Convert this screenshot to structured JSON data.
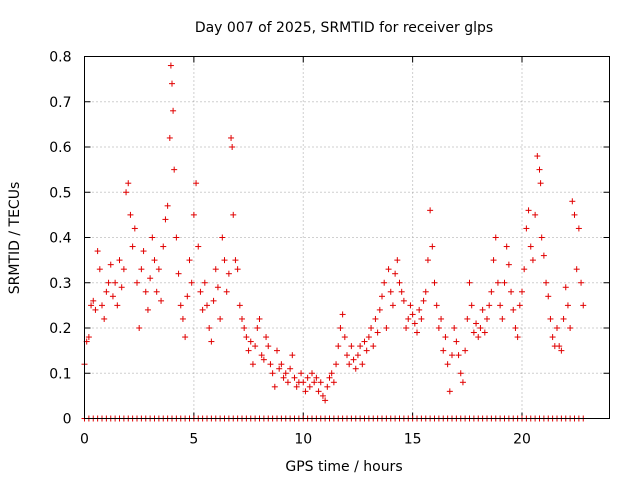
{
  "chart_data": {
    "type": "scatter",
    "title": "Day 007 of 2025, SRMTID for receiver glps",
    "xlabel": "GPS time / hours",
    "ylabel": "SRMTID / TECUs",
    "xlim": [
      0,
      24
    ],
    "ylim": [
      0,
      0.8
    ],
    "xticks": [
      0,
      5,
      10,
      15,
      20
    ],
    "xtick_labels": [
      "0",
      "5",
      "10",
      "15",
      "20"
    ],
    "yticks": [
      0,
      0.1,
      0.2,
      0.3,
      0.4,
      0.5,
      0.6,
      0.7,
      0.8
    ],
    "ytick_labels": [
      "0",
      "0.1",
      "0.2",
      "0.3",
      "0.4",
      "0.5",
      "0.6",
      "0.7",
      "0.8"
    ],
    "grid": true,
    "marker": "+",
    "color": "#e00000",
    "zero_line_range_hours": [
      0,
      22.8
    ],
    "series": [
      {
        "name": "SRMTID",
        "points": [
          [
            0.0,
            0.12
          ],
          [
            0.1,
            0.17
          ],
          [
            0.2,
            0.18
          ],
          [
            0.3,
            0.25
          ],
          [
            0.4,
            0.26
          ],
          [
            0.5,
            0.24
          ],
          [
            0.6,
            0.37
          ],
          [
            0.7,
            0.33
          ],
          [
            0.8,
            0.25
          ],
          [
            0.9,
            0.22
          ],
          [
            1.0,
            0.28
          ],
          [
            1.1,
            0.3
          ],
          [
            1.2,
            0.34
          ],
          [
            1.3,
            0.27
          ],
          [
            1.4,
            0.3
          ],
          [
            1.5,
            0.25
          ],
          [
            1.6,
            0.35
          ],
          [
            1.7,
            0.29
          ],
          [
            1.8,
            0.33
          ],
          [
            1.9,
            0.5
          ],
          [
            2.0,
            0.52
          ],
          [
            2.1,
            0.45
          ],
          [
            2.2,
            0.38
          ],
          [
            2.3,
            0.42
          ],
          [
            2.4,
            0.3
          ],
          [
            2.5,
            0.2
          ],
          [
            2.6,
            0.33
          ],
          [
            2.7,
            0.37
          ],
          [
            2.8,
            0.28
          ],
          [
            2.9,
            0.24
          ],
          [
            3.0,
            0.31
          ],
          [
            3.1,
            0.4
          ],
          [
            3.2,
            0.35
          ],
          [
            3.3,
            0.28
          ],
          [
            3.4,
            0.33
          ],
          [
            3.5,
            0.26
          ],
          [
            3.6,
            0.38
          ],
          [
            3.7,
            0.44
          ],
          [
            3.8,
            0.47
          ],
          [
            3.9,
            0.62
          ],
          [
            3.95,
            0.78
          ],
          [
            4.0,
            0.74
          ],
          [
            4.05,
            0.68
          ],
          [
            4.1,
            0.55
          ],
          [
            4.2,
            0.4
          ],
          [
            4.3,
            0.32
          ],
          [
            4.4,
            0.25
          ],
          [
            4.5,
            0.22
          ],
          [
            4.6,
            0.18
          ],
          [
            4.7,
            0.27
          ],
          [
            4.8,
            0.35
          ],
          [
            4.9,
            0.3
          ],
          [
            5.0,
            0.45
          ],
          [
            5.1,
            0.52
          ],
          [
            5.2,
            0.38
          ],
          [
            5.3,
            0.28
          ],
          [
            5.4,
            0.24
          ],
          [
            5.5,
            0.3
          ],
          [
            5.6,
            0.25
          ],
          [
            5.7,
            0.2
          ],
          [
            5.8,
            0.17
          ],
          [
            5.9,
            0.26
          ],
          [
            6.0,
            0.33
          ],
          [
            6.1,
            0.29
          ],
          [
            6.2,
            0.22
          ],
          [
            6.3,
            0.4
          ],
          [
            6.4,
            0.35
          ],
          [
            6.5,
            0.28
          ],
          [
            6.6,
            0.32
          ],
          [
            6.7,
            0.62
          ],
          [
            6.75,
            0.6
          ],
          [
            6.8,
            0.45
          ],
          [
            6.9,
            0.35
          ],
          [
            7.0,
            0.33
          ],
          [
            7.1,
            0.25
          ],
          [
            7.2,
            0.22
          ],
          [
            7.3,
            0.2
          ],
          [
            7.4,
            0.18
          ],
          [
            7.5,
            0.15
          ],
          [
            7.6,
            0.17
          ],
          [
            7.7,
            0.12
          ],
          [
            7.8,
            0.16
          ],
          [
            7.9,
            0.2
          ],
          [
            8.0,
            0.22
          ],
          [
            8.1,
            0.14
          ],
          [
            8.2,
            0.13
          ],
          [
            8.3,
            0.18
          ],
          [
            8.4,
            0.16
          ],
          [
            8.5,
            0.12
          ],
          [
            8.6,
            0.1
          ],
          [
            8.7,
            0.07
          ],
          [
            8.8,
            0.15
          ],
          [
            8.9,
            0.11
          ],
          [
            9.0,
            0.12
          ],
          [
            9.1,
            0.09
          ],
          [
            9.2,
            0.1
          ],
          [
            9.3,
            0.08
          ],
          [
            9.4,
            0.11
          ],
          [
            9.5,
            0.14
          ],
          [
            9.6,
            0.09
          ],
          [
            9.7,
            0.07
          ],
          [
            9.8,
            0.08
          ],
          [
            9.9,
            0.1
          ],
          [
            10.0,
            0.08
          ],
          [
            10.1,
            0.06
          ],
          [
            10.2,
            0.09
          ],
          [
            10.3,
            0.07
          ],
          [
            10.4,
            0.1
          ],
          [
            10.5,
            0.08
          ],
          [
            10.6,
            0.09
          ],
          [
            10.7,
            0.06
          ],
          [
            10.8,
            0.08
          ],
          [
            10.9,
            0.05
          ],
          [
            11.0,
            0.04
          ],
          [
            11.1,
            0.07
          ],
          [
            11.2,
            0.09
          ],
          [
            11.3,
            0.1
          ],
          [
            11.4,
            0.08
          ],
          [
            11.5,
            0.12
          ],
          [
            11.6,
            0.16
          ],
          [
            11.7,
            0.2
          ],
          [
            11.8,
            0.23
          ],
          [
            11.9,
            0.18
          ],
          [
            12.0,
            0.14
          ],
          [
            12.1,
            0.12
          ],
          [
            12.2,
            0.16
          ],
          [
            12.3,
            0.13
          ],
          [
            12.4,
            0.11
          ],
          [
            12.5,
            0.14
          ],
          [
            12.6,
            0.16
          ],
          [
            12.7,
            0.12
          ],
          [
            12.8,
            0.17
          ],
          [
            12.9,
            0.15
          ],
          [
            13.0,
            0.18
          ],
          [
            13.1,
            0.2
          ],
          [
            13.2,
            0.16
          ],
          [
            13.3,
            0.22
          ],
          [
            13.4,
            0.19
          ],
          [
            13.5,
            0.24
          ],
          [
            13.6,
            0.27
          ],
          [
            13.7,
            0.3
          ],
          [
            13.8,
            0.2
          ],
          [
            13.9,
            0.33
          ],
          [
            14.0,
            0.28
          ],
          [
            14.1,
            0.25
          ],
          [
            14.2,
            0.32
          ],
          [
            14.3,
            0.35
          ],
          [
            14.4,
            0.3
          ],
          [
            14.5,
            0.28
          ],
          [
            14.6,
            0.26
          ],
          [
            14.7,
            0.2
          ],
          [
            14.8,
            0.22
          ],
          [
            14.9,
            0.25
          ],
          [
            15.0,
            0.23
          ],
          [
            15.1,
            0.21
          ],
          [
            15.2,
            0.19
          ],
          [
            15.3,
            0.24
          ],
          [
            15.4,
            0.22
          ],
          [
            15.5,
            0.26
          ],
          [
            15.6,
            0.28
          ],
          [
            15.7,
            0.35
          ],
          [
            15.8,
            0.46
          ],
          [
            15.9,
            0.38
          ],
          [
            16.0,
            0.3
          ],
          [
            16.1,
            0.25
          ],
          [
            16.2,
            0.2
          ],
          [
            16.3,
            0.22
          ],
          [
            16.4,
            0.15
          ],
          [
            16.5,
            0.18
          ],
          [
            16.6,
            0.12
          ],
          [
            16.7,
            0.06
          ],
          [
            16.8,
            0.14
          ],
          [
            16.9,
            0.2
          ],
          [
            17.0,
            0.17
          ],
          [
            17.1,
            0.14
          ],
          [
            17.2,
            0.1
          ],
          [
            17.3,
            0.08
          ],
          [
            17.4,
            0.15
          ],
          [
            17.5,
            0.22
          ],
          [
            17.6,
            0.3
          ],
          [
            17.7,
            0.25
          ],
          [
            17.8,
            0.19
          ],
          [
            17.9,
            0.21
          ],
          [
            18.0,
            0.18
          ],
          [
            18.1,
            0.2
          ],
          [
            18.2,
            0.24
          ],
          [
            18.3,
            0.19
          ],
          [
            18.4,
            0.22
          ],
          [
            18.5,
            0.25
          ],
          [
            18.6,
            0.28
          ],
          [
            18.7,
            0.35
          ],
          [
            18.8,
            0.4
          ],
          [
            18.9,
            0.3
          ],
          [
            19.0,
            0.25
          ],
          [
            19.1,
            0.22
          ],
          [
            19.2,
            0.3
          ],
          [
            19.3,
            0.38
          ],
          [
            19.4,
            0.34
          ],
          [
            19.5,
            0.28
          ],
          [
            19.6,
            0.24
          ],
          [
            19.7,
            0.2
          ],
          [
            19.8,
            0.18
          ],
          [
            19.9,
            0.25
          ],
          [
            20.0,
            0.28
          ],
          [
            20.1,
            0.33
          ],
          [
            20.2,
            0.42
          ],
          [
            20.3,
            0.46
          ],
          [
            20.4,
            0.38
          ],
          [
            20.5,
            0.35
          ],
          [
            20.6,
            0.45
          ],
          [
            20.7,
            0.58
          ],
          [
            20.8,
            0.55
          ],
          [
            20.85,
            0.52
          ],
          [
            20.9,
            0.4
          ],
          [
            21.0,
            0.36
          ],
          [
            21.1,
            0.3
          ],
          [
            21.2,
            0.27
          ],
          [
            21.3,
            0.22
          ],
          [
            21.4,
            0.18
          ],
          [
            21.5,
            0.16
          ],
          [
            21.6,
            0.2
          ],
          [
            21.7,
            0.16
          ],
          [
            21.8,
            0.15
          ],
          [
            21.9,
            0.22
          ],
          [
            22.0,
            0.29
          ],
          [
            22.1,
            0.25
          ],
          [
            22.2,
            0.2
          ],
          [
            22.3,
            0.48
          ],
          [
            22.4,
            0.45
          ],
          [
            22.5,
            0.33
          ],
          [
            22.6,
            0.42
          ],
          [
            22.7,
            0.3
          ],
          [
            22.8,
            0.25
          ]
        ]
      }
    ]
  }
}
